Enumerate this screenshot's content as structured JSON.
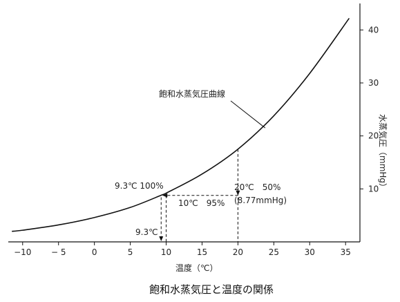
{
  "chart_data": {
    "type": "line",
    "title": "飽和水蒸気圧と温度の関係",
    "xlabel": "温度（℃）",
    "ylabel": "水蒸気圧（mmHg）",
    "xlim": [
      -12,
      37
    ],
    "ylim": [
      0,
      45
    ],
    "x_ticks": [
      -10,
      -5,
      0,
      5,
      10,
      15,
      20,
      25,
      30,
      35
    ],
    "x_tick_labels": [
      "−10",
      "− 5",
      "0",
      "5",
      "10",
      "15",
      "20",
      "25",
      "30",
      "35"
    ],
    "y_ticks": [
      10,
      20,
      30,
      40
    ],
    "y_tick_labels": [
      "10",
      "20",
      "30",
      "40"
    ],
    "y_axis_position": "right",
    "grid": false,
    "series": [
      {
        "name": "飽和水蒸気圧曲線",
        "x": [
          -11.5,
          -10,
          -5,
          0,
          5,
          9.3,
          10,
          15,
          20,
          25,
          30,
          35.5
        ],
        "y": [
          2.0,
          2.2,
          3.2,
          4.6,
          6.5,
          8.8,
          9.2,
          12.8,
          17.5,
          23.8,
          31.8,
          42.2
        ]
      }
    ],
    "curve_label": "飽和水蒸気圧曲線",
    "annotations": {
      "point_93_label": "9.3℃ 100%",
      "point_10_label": "10℃　95%",
      "point_20_label": "20℃　50%",
      "point_20_sub": "(8.77mmHg)",
      "dew_point_label": "9.3℃"
    },
    "reference_points": [
      {
        "x": 9.3,
        "y": 8.8
      },
      {
        "x": 10,
        "y": 8.77
      },
      {
        "x": 20,
        "y": 8.77
      },
      {
        "x": 20,
        "y": 17.5
      }
    ]
  }
}
